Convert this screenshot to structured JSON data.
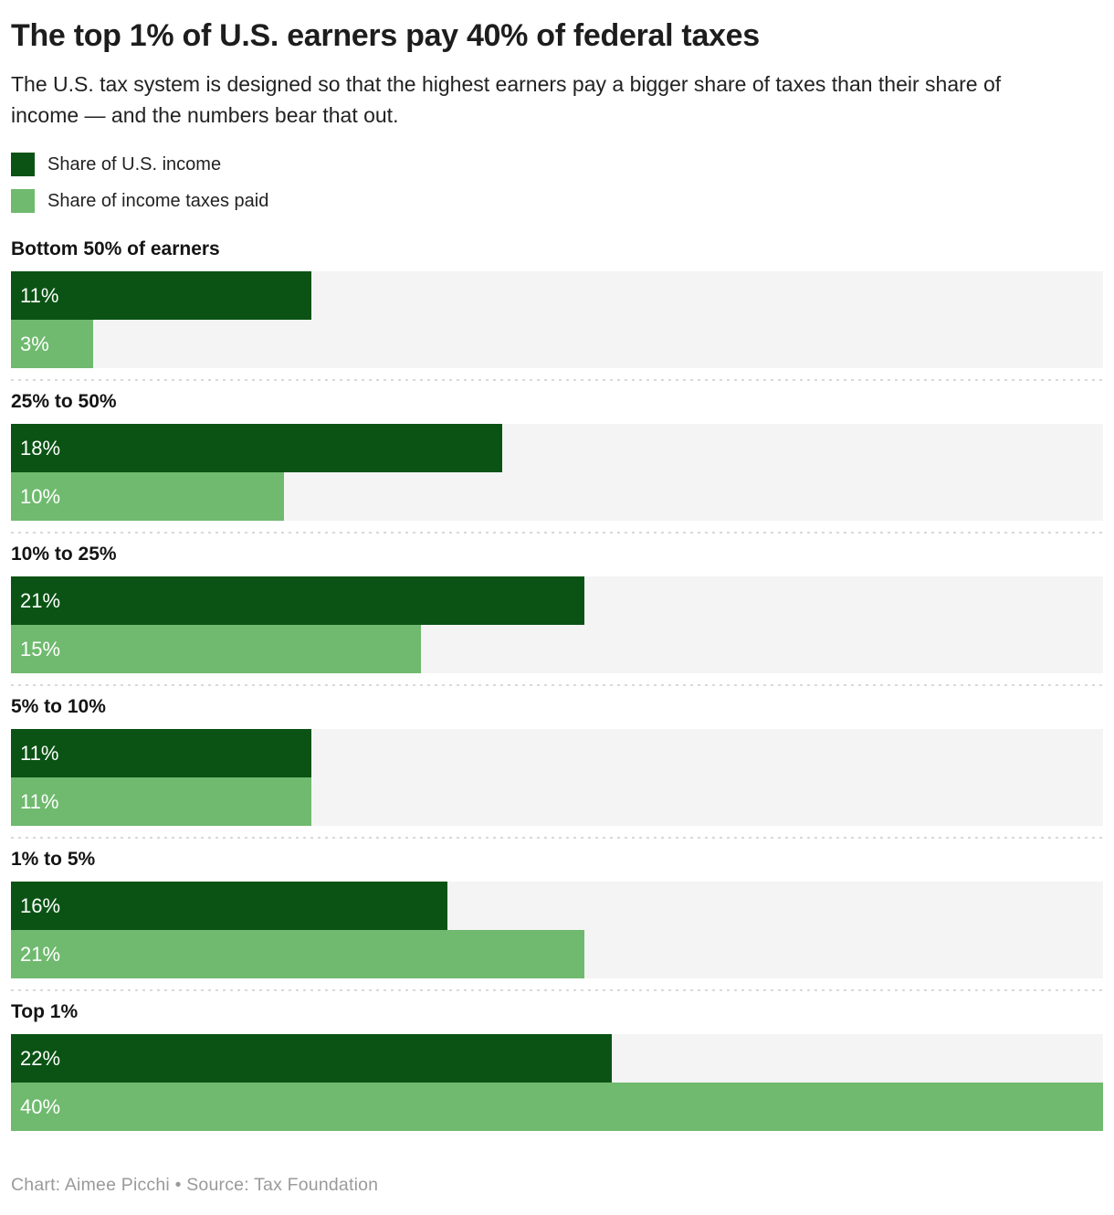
{
  "header": {
    "title": "The top 1% of U.S. earners pay 40% of federal taxes",
    "subtitle": "The U.S. tax system is designed so that the highest earners pay a bigger share of taxes than their share of income — and the numbers bear that out."
  },
  "legend": {
    "income_label": "Share of U.S. income",
    "taxes_label": "Share of income taxes paid"
  },
  "colors": {
    "income": "#0a5314",
    "taxes": "#6fba6e",
    "track": "#f4f4f4",
    "separator": "#d9d9d9"
  },
  "chart_data": {
    "type": "bar",
    "orientation": "horizontal",
    "xmax": 40,
    "grid": false,
    "legend_position": "top-left",
    "title": "The top 1% of U.S. earners pay 40% of federal taxes",
    "categories": [
      "Bottom 50% of earners",
      "25% to 50%",
      "10% to 25%",
      "5% to 10%",
      "1% to 5%",
      "Top 1%"
    ],
    "series": [
      {
        "name": "Share of U.S. income",
        "values": [
          11,
          18,
          21,
          11,
          16,
          22
        ]
      },
      {
        "name": "Share of income taxes paid",
        "values": [
          3,
          10,
          15,
          11,
          21,
          40
        ]
      }
    ],
    "groups": [
      {
        "label": "Bottom 50% of earners",
        "income": 11,
        "income_label": "11%",
        "taxes": 3,
        "taxes_label": "3%"
      },
      {
        "label": "25% to 50%",
        "income": 18,
        "income_label": "18%",
        "taxes": 10,
        "taxes_label": "10%"
      },
      {
        "label": "10% to 25%",
        "income": 21,
        "income_label": "21%",
        "taxes": 15,
        "taxes_label": "15%"
      },
      {
        "label": "5% to 10%",
        "income": 11,
        "income_label": "11%",
        "taxes": 11,
        "taxes_label": "11%"
      },
      {
        "label": "1% to 5%",
        "income": 16,
        "income_label": "16%",
        "taxes": 21,
        "taxes_label": "21%"
      },
      {
        "label": "Top 1%",
        "income": 22,
        "income_label": "22%",
        "taxes": 40,
        "taxes_label": "40%"
      }
    ]
  },
  "footer": {
    "text": "Chart: Aimee Picchi  •  Source: Tax Foundation"
  }
}
